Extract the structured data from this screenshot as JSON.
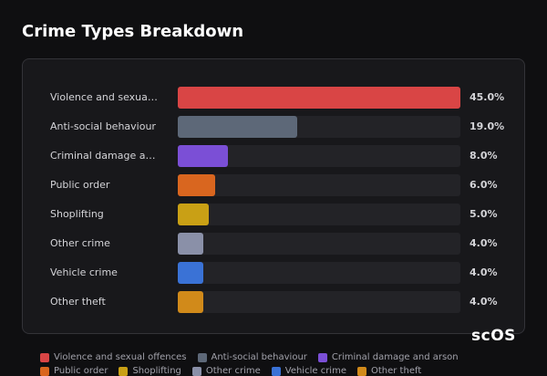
{
  "chart_data": {
    "type": "bar",
    "orientation": "horizontal",
    "title": "Crime Types Breakdown",
    "categories": [
      "Violence and sexual offences",
      "Anti-social behaviour",
      "Criminal damage and arson",
      "Public order",
      "Shoplifting",
      "Other crime",
      "Vehicle crime",
      "Other theft"
    ],
    "values": [
      45,
      19,
      8,
      6,
      5,
      4,
      4,
      4
    ],
    "value_labels": [
      "45.0%",
      "19.0%",
      "8.0%",
      "6.0%",
      "5.0%",
      "4.0%",
      "4.0%",
      "4.0%"
    ],
    "colors": [
      "#d94545",
      "#5d6878",
      "#7b4fd6",
      "#d9661f",
      "#c9a015",
      "#8a90a8",
      "#3a72d6",
      "#d18a1a"
    ],
    "xlim": [
      0,
      45
    ],
    "legend": "bottom",
    "watermark": "scOS"
  }
}
